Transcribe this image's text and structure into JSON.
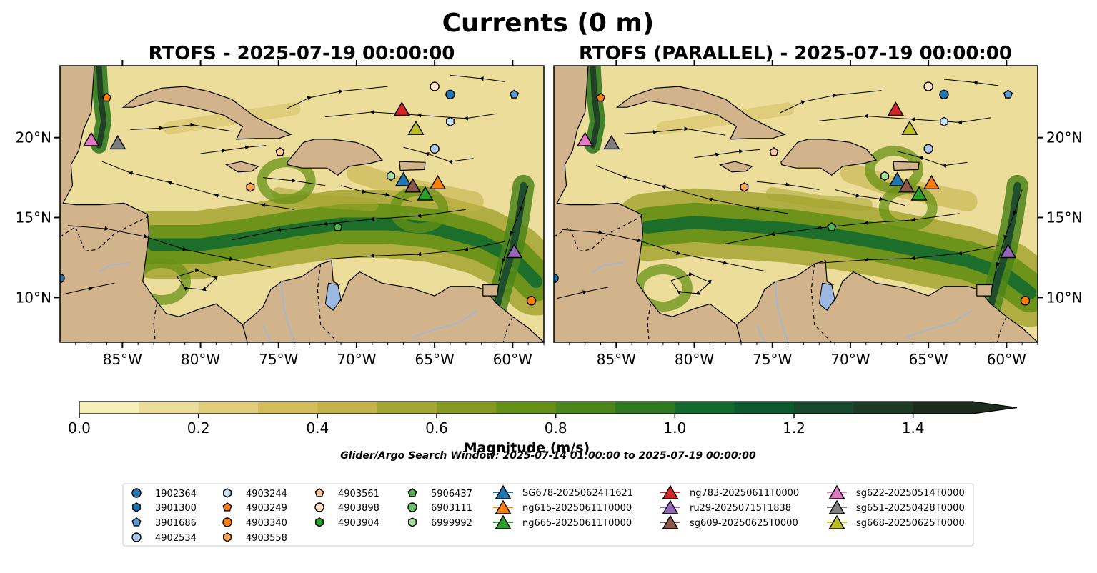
{
  "figure": {
    "suptitle": "Currents (0 m)",
    "search_window": "Glider/Argo Search Window: 2025-07-14 01:00:00 to 2025-07-19 00:00:00"
  },
  "panels": [
    {
      "title": "RTOFS - 2025-07-19 00:00:00"
    },
    {
      "title": "RTOFS (PARALLEL) - 2025-07-19 00:00:00"
    }
  ],
  "map": {
    "lon_range": [
      -89,
      -58
    ],
    "lat_range": [
      7.2,
      24.5
    ],
    "lon_ticks": [
      -85,
      -80,
      -75,
      -70,
      -65,
      -60
    ],
    "lon_tick_labels": [
      "85°W",
      "80°W",
      "75°W",
      "70°W",
      "65°W",
      "60°W"
    ],
    "lat_ticks": [
      10,
      15,
      20
    ],
    "lat_tick_labels": [
      "10°N",
      "15°N",
      "20°N"
    ],
    "colors": {
      "land": "#d2b48c",
      "ocean_low": "#f7efb8",
      "lake": "#9ab8e0",
      "river": "#a7b6cc"
    }
  },
  "colorbar": {
    "label": "Magnitude (m/s)",
    "min": 0,
    "max": 1.5,
    "step": 0.1,
    "extend": "max",
    "ticks": [
      0.0,
      0.2,
      0.4,
      0.6,
      0.8,
      1.0,
      1.2,
      1.4
    ],
    "tick_labels": [
      "0.0",
      "0.2",
      "0.4",
      "0.6",
      "0.8",
      "1.0",
      "1.2",
      "1.4"
    ],
    "colors": [
      "#f7efb8",
      "#eddd9a",
      "#e0cc79",
      "#d4bd5c",
      "#c4b24a",
      "#a5a632",
      "#869a22",
      "#679016",
      "#4c8519",
      "#2f7a20",
      "#136a2c",
      "#0d5a2e",
      "#17472c",
      "#1d3a25",
      "#1d2b1d"
    ]
  },
  "chart_data": {
    "type": "scatter",
    "title": "Currents (0 m)",
    "xlabel": "",
    "ylabel": "",
    "xlim": [
      -89,
      -58
    ],
    "ylim": [
      7.2,
      24.5
    ],
    "series": [
      {
        "name": "1902364",
        "marker": "circle",
        "color": "#1f77b4",
        "points": [
          {
            "lon": -64.0,
            "lat": 22.7
          },
          {
            "lon": -89.0,
            "lat": 11.2
          }
        ]
      },
      {
        "name": "3901300",
        "marker": "hexagon",
        "color": "#1f77b4",
        "points": []
      },
      {
        "name": "3901686",
        "marker": "pentagon",
        "color": "#5b9bd5",
        "points": [
          {
            "lon": -59.9,
            "lat": 22.7
          }
        ]
      },
      {
        "name": "4902534",
        "marker": "circle",
        "color": "#aec7e8",
        "points": [
          {
            "lon": -65.0,
            "lat": 19.3
          }
        ]
      },
      {
        "name": "4903244",
        "marker": "hexagon",
        "color": "#c6e2f5",
        "points": [
          {
            "lon": -64.0,
            "lat": 21.0
          }
        ]
      },
      {
        "name": "4903249",
        "marker": "pentagon",
        "color": "#ff7f0e",
        "points": [
          {
            "lon": -86.0,
            "lat": 22.5
          }
        ]
      },
      {
        "name": "4903340",
        "marker": "circle",
        "color": "#ff7f0e",
        "points": [
          {
            "lon": -58.8,
            "lat": 9.8
          }
        ]
      },
      {
        "name": "4903558",
        "marker": "hexagon",
        "color": "#ffa54f",
        "points": [
          {
            "lon": -76.8,
            "lat": 16.9
          }
        ]
      },
      {
        "name": "4903561",
        "marker": "pentagon",
        "color": "#ffc9a0",
        "points": [
          {
            "lon": -74.9,
            "lat": 19.1
          }
        ]
      },
      {
        "name": "4903898",
        "marker": "circle",
        "color": "#ffe1c8",
        "points": [
          {
            "lon": -65.0,
            "lat": 23.2
          }
        ]
      },
      {
        "name": "4903904",
        "marker": "hexagon",
        "color": "#2ca02c",
        "points": []
      },
      {
        "name": "5906437",
        "marker": "pentagon",
        "color": "#4fb34f",
        "points": [
          {
            "lon": -71.2,
            "lat": 14.4
          }
        ]
      },
      {
        "name": "6903111",
        "marker": "circle",
        "color": "#66c266",
        "points": []
      },
      {
        "name": "6999992",
        "marker": "hexagon",
        "color": "#a8e0a0",
        "points": [
          {
            "lon": -67.8,
            "lat": 17.6
          }
        ]
      },
      {
        "name": "SG678-20250624T1621",
        "marker": "triangle",
        "color": "#1f77b4",
        "points": [
          {
            "lon": -67.0,
            "lat": 17.4
          }
        ]
      },
      {
        "name": "ng615-20250611T0000",
        "marker": "triangle",
        "color": "#ff7f0e",
        "points": [
          {
            "lon": -64.8,
            "lat": 17.2
          }
        ]
      },
      {
        "name": "ng665-20250611T0000",
        "marker": "triangle",
        "color": "#2ca02c",
        "points": [
          {
            "lon": -65.6,
            "lat": 16.5
          }
        ]
      },
      {
        "name": "ng783-20250611T0000",
        "marker": "triangle",
        "color": "#d62728",
        "points": [
          {
            "lon": -67.1,
            "lat": 21.8
          }
        ]
      },
      {
        "name": "ru29-20250715T1838",
        "marker": "triangle",
        "color": "#9467bd",
        "points": [
          {
            "lon": -59.9,
            "lat": 12.9
          }
        ]
      },
      {
        "name": "sg609-20250625T0000",
        "marker": "triangle",
        "color": "#8c564b",
        "points": [
          {
            "lon": -66.4,
            "lat": 17.0
          }
        ]
      },
      {
        "name": "sg622-20250514T0000",
        "marker": "triangle",
        "color": "#e377c2",
        "points": [
          {
            "lon": -87.0,
            "lat": 19.9
          }
        ]
      },
      {
        "name": "sg651-20250428T0000",
        "marker": "triangle",
        "color": "#7f7f7f",
        "points": [
          {
            "lon": -85.3,
            "lat": 19.7
          }
        ]
      },
      {
        "name": "sg668-20250625T0000",
        "marker": "triangle",
        "color": "#bcbd22",
        "points": [
          {
            "lon": -66.2,
            "lat": 20.6
          }
        ]
      }
    ]
  },
  "legend": {
    "columns": [
      [
        "1902364",
        "3901300",
        "3901686",
        "4902534"
      ],
      [
        "4903244",
        "4903249",
        "4903340",
        "4903558"
      ],
      [
        "4903561",
        "4903898",
        "4903904"
      ],
      [
        "5906437",
        "6903111",
        "6999992"
      ],
      [
        "SG678-20250624T1621",
        "ng615-20250611T0000",
        "ng665-20250611T0000"
      ],
      [
        "ng783-20250611T0000",
        "ru29-20250715T1838",
        "sg609-20250625T0000"
      ],
      [
        "sg622-20250514T0000",
        "sg651-20250428T0000",
        "sg668-20250625T0000"
      ]
    ]
  }
}
